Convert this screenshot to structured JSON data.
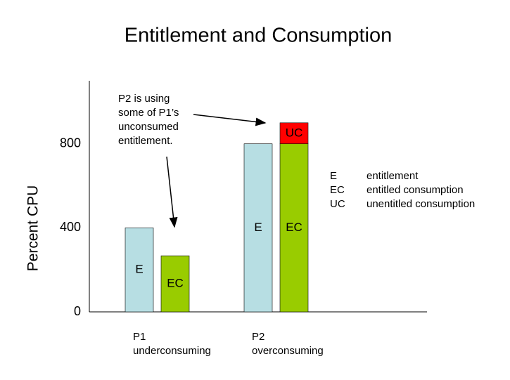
{
  "chart_data": {
    "type": "bar",
    "title": "Entitlement and Consumption",
    "y_label": "Percent CPU",
    "categories": [
      "P1",
      "P2"
    ],
    "category_notes": [
      "underconsuming",
      "overconsuming"
    ],
    "series": [
      {
        "name": "E",
        "description": "entitlement",
        "color": "#b7dee3",
        "values": [
          400,
          800
        ]
      },
      {
        "name": "EC",
        "description": "entitled consumption",
        "color": "#99cc00",
        "values": [
          267,
          800
        ]
      },
      {
        "name": "UC",
        "description": "unentitled consumption",
        "color": "#ff0000",
        "values": [
          null,
          100
        ]
      }
    ],
    "ylim": [
      0,
      1100
    ],
    "yticks": [
      0,
      400,
      800
    ],
    "grid": false,
    "annotation": [
      "P2 is using",
      "some of P1’s",
      "unconsumed",
      "entitlement."
    ]
  }
}
